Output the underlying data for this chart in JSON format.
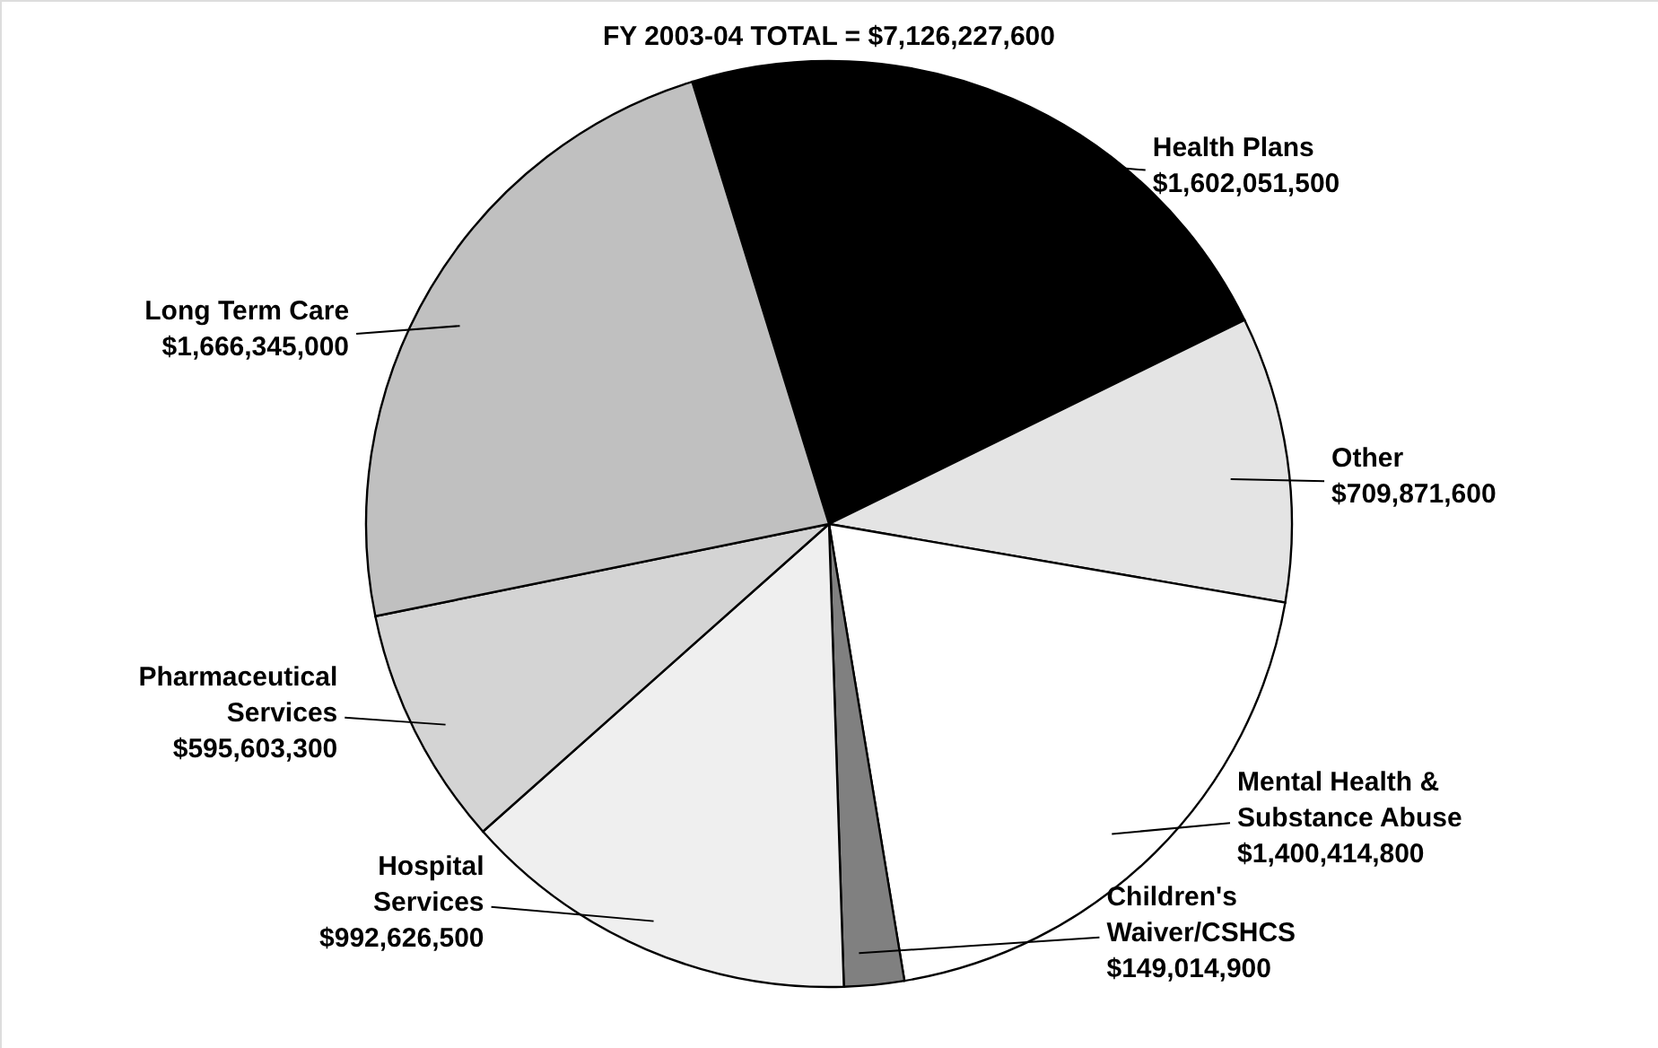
{
  "chart_data": {
    "type": "pie",
    "title": "FY 2003-04 TOTAL = $7,126,227,600",
    "categories": [
      "Health Plans",
      "Other",
      "Mental Health & Substance Abuse",
      "Children's Waiver/CSHCS",
      "Hospital Services",
      "Pharmaceutical Services",
      "Long Term Care"
    ],
    "values": [
      1602051500,
      709871600,
      1400414800,
      149014900,
      992626500,
      595603300,
      1666345000
    ],
    "value_labels": [
      "$1,602,051,500",
      "$709,871,600",
      "$1,400,414,800",
      "$149,014,900",
      "$992,626,500",
      "$595,603,300",
      "$1,666,345,000"
    ],
    "colors": [
      "#000000",
      "#e4e4e4",
      "#ffffff",
      "#808080",
      "#efefef",
      "#d4d4d4",
      "#c0c0c0"
    ],
    "legend": false
  }
}
